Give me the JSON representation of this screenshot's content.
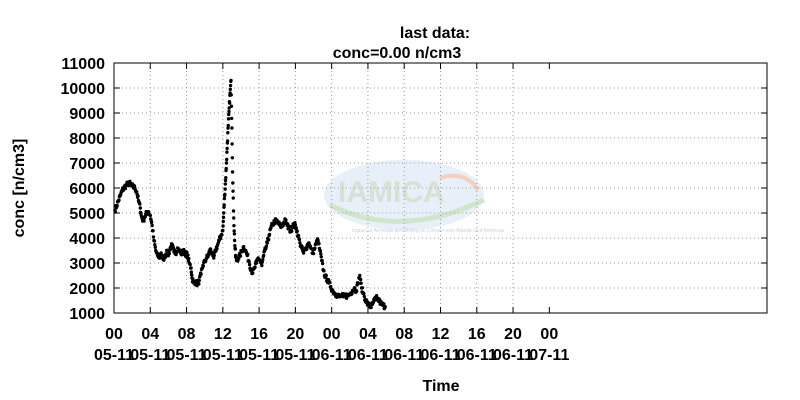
{
  "chart_data": {
    "type": "scatter",
    "title_line1": "last data:",
    "title_line2": "conc=0.00 n/cm3",
    "xlabel": "Time",
    "ylabel": "conc [n/cm3]",
    "ylim": [
      1000,
      11000
    ],
    "yticks": [
      1000,
      2000,
      3000,
      4000,
      5000,
      6000,
      7000,
      8000,
      9000,
      10000,
      11000
    ],
    "xlim_hours": [
      0,
      72
    ],
    "xticks": [
      {
        "hour": 0,
        "time": "00",
        "date": "05-11"
      },
      {
        "hour": 4,
        "time": "04",
        "date": "05-11"
      },
      {
        "hour": 8,
        "time": "08",
        "date": "05-11"
      },
      {
        "hour": 12,
        "time": "12",
        "date": "05-11"
      },
      {
        "hour": 16,
        "time": "16",
        "date": "05-11"
      },
      {
        "hour": 20,
        "time": "20",
        "date": "05-11"
      },
      {
        "hour": 24,
        "time": "00",
        "date": "06-11"
      },
      {
        "hour": 28,
        "time": "04",
        "date": "06-11"
      },
      {
        "hour": 32,
        "time": "08",
        "date": "06-11"
      },
      {
        "hour": 36,
        "time": "12",
        "date": "06-11"
      },
      {
        "hour": 40,
        "time": "16",
        "date": "06-11"
      },
      {
        "hour": 44,
        "time": "20",
        "date": "06-11"
      },
      {
        "hour": 48,
        "time": "00",
        "date": "07-11"
      }
    ],
    "grid": "dotted",
    "marker_color": "#000000",
    "series": [
      {
        "points": [
          [
            0.1,
            5100
          ],
          [
            0.3,
            5300
          ],
          [
            0.5,
            5500
          ],
          [
            0.7,
            5700
          ],
          [
            0.9,
            5900
          ],
          [
            1.1,
            6000
          ],
          [
            1.3,
            6100
          ],
          [
            1.5,
            6150
          ],
          [
            1.7,
            6200
          ],
          [
            1.9,
            6100
          ],
          [
            2.1,
            6050
          ],
          [
            2.3,
            6000
          ],
          [
            2.5,
            5850
          ],
          [
            2.7,
            5500
          ],
          [
            2.9,
            5200
          ],
          [
            3.0,
            4900
          ],
          [
            3.2,
            4700
          ],
          [
            3.4,
            4850
          ],
          [
            3.6,
            5000
          ],
          [
            3.8,
            5050
          ],
          [
            4.0,
            4900
          ],
          [
            4.2,
            4500
          ],
          [
            4.4,
            3900
          ],
          [
            4.6,
            3500
          ],
          [
            4.8,
            3300
          ],
          [
            5.0,
            3200
          ],
          [
            5.2,
            3400
          ],
          [
            5.4,
            3150
          ],
          [
            5.6,
            3250
          ],
          [
            5.8,
            3500
          ],
          [
            6.0,
            3300
          ],
          [
            6.2,
            3600
          ],
          [
            6.4,
            3700
          ],
          [
            6.6,
            3450
          ],
          [
            6.8,
            3400
          ],
          [
            7.0,
            3600
          ],
          [
            7.2,
            3500
          ],
          [
            7.4,
            3350
          ],
          [
            7.6,
            3500
          ],
          [
            7.8,
            3400
          ],
          [
            8.0,
            3350
          ],
          [
            8.1,
            3300
          ],
          [
            8.3,
            3000
          ],
          [
            8.5,
            2800
          ],
          [
            8.6,
            2400
          ],
          [
            8.8,
            2200
          ],
          [
            9.0,
            2250
          ],
          [
            9.2,
            2150
          ],
          [
            9.4,
            2300
          ],
          [
            9.6,
            2550
          ],
          [
            9.8,
            2900
          ],
          [
            10.0,
            3050
          ],
          [
            10.2,
            3200
          ],
          [
            10.4,
            3300
          ],
          [
            10.6,
            3550
          ],
          [
            10.8,
            3400
          ],
          [
            11.0,
            3200
          ],
          [
            11.2,
            3500
          ],
          [
            11.4,
            3700
          ],
          [
            11.6,
            3900
          ],
          [
            11.8,
            4100
          ],
          [
            12.0,
            4300
          ],
          [
            12.1,
            5000
          ],
          [
            12.2,
            5700
          ],
          [
            12.3,
            6300
          ],
          [
            12.4,
            7000
          ],
          [
            12.5,
            7800
          ],
          [
            12.6,
            8500
          ],
          [
            12.7,
            9200
          ],
          [
            12.8,
            9800
          ],
          [
            12.9,
            10300
          ],
          [
            13.0,
            8400
          ],
          [
            13.1,
            6200
          ],
          [
            13.2,
            4800
          ],
          [
            13.3,
            3900
          ],
          [
            13.4,
            3300
          ],
          [
            13.5,
            3100
          ],
          [
            13.7,
            3200
          ],
          [
            13.9,
            3300
          ],
          [
            14.1,
            3500
          ],
          [
            14.3,
            3650
          ],
          [
            14.5,
            3500
          ],
          [
            14.7,
            3300
          ],
          [
            14.9,
            3050
          ],
          [
            15.1,
            2750
          ],
          [
            15.3,
            2600
          ],
          [
            15.5,
            2800
          ],
          [
            15.7,
            3000
          ],
          [
            15.9,
            3200
          ],
          [
            16.1,
            3100
          ],
          [
            16.3,
            2900
          ],
          [
            16.5,
            3300
          ],
          [
            16.7,
            3550
          ],
          [
            16.9,
            3800
          ],
          [
            17.1,
            4100
          ],
          [
            17.3,
            4400
          ],
          [
            17.5,
            4550
          ],
          [
            17.7,
            4650
          ],
          [
            17.9,
            4700
          ],
          [
            18.1,
            4600
          ],
          [
            18.3,
            4500
          ],
          [
            18.5,
            4450
          ],
          [
            18.7,
            4600
          ],
          [
            18.9,
            4700
          ],
          [
            19.1,
            4500
          ],
          [
            19.3,
            4400
          ],
          [
            19.5,
            4300
          ],
          [
            19.7,
            4450
          ],
          [
            19.9,
            4550
          ],
          [
            20.1,
            4400
          ],
          [
            20.3,
            4100
          ],
          [
            20.5,
            3800
          ],
          [
            20.7,
            3600
          ],
          [
            20.9,
            3400
          ],
          [
            21.1,
            3550
          ],
          [
            21.3,
            3700
          ],
          [
            21.5,
            3800
          ],
          [
            21.7,
            3600
          ],
          [
            21.9,
            3400
          ],
          [
            22.1,
            3550
          ],
          [
            22.3,
            3800
          ],
          [
            22.5,
            3900
          ],
          [
            22.7,
            3500
          ],
          [
            22.9,
            3100
          ],
          [
            23.1,
            2700
          ],
          [
            23.3,
            2450
          ],
          [
            23.5,
            2350
          ],
          [
            23.7,
            2200
          ],
          [
            23.9,
            2050
          ],
          [
            24.1,
            1900
          ],
          [
            24.3,
            1800
          ],
          [
            24.5,
            1750
          ],
          [
            24.7,
            1700
          ],
          [
            24.9,
            1650
          ],
          [
            25.1,
            1700
          ],
          [
            25.3,
            1650
          ],
          [
            25.5,
            1700
          ],
          [
            25.7,
            1680
          ],
          [
            25.9,
            1720
          ],
          [
            26.1,
            1800
          ],
          [
            26.3,
            1900
          ],
          [
            26.5,
            2000
          ],
          [
            26.7,
            1900
          ],
          [
            26.9,
            2200
          ],
          [
            27.1,
            2500
          ],
          [
            27.3,
            2000
          ],
          [
            27.5,
            1800
          ],
          [
            27.7,
            1550
          ],
          [
            27.9,
            1400
          ],
          [
            28.1,
            1300
          ],
          [
            28.3,
            1250
          ],
          [
            28.5,
            1350
          ],
          [
            28.7,
            1500
          ],
          [
            28.9,
            1600
          ],
          [
            29.1,
            1550
          ],
          [
            29.3,
            1450
          ],
          [
            29.5,
            1350
          ],
          [
            29.7,
            1300
          ],
          [
            29.9,
            1250
          ]
        ]
      }
    ]
  },
  "watermark": {
    "brand": "IAMICA",
    "tagline": "Impact of Aerosols and Mixing on Climate over Atlantic and Americas"
  }
}
